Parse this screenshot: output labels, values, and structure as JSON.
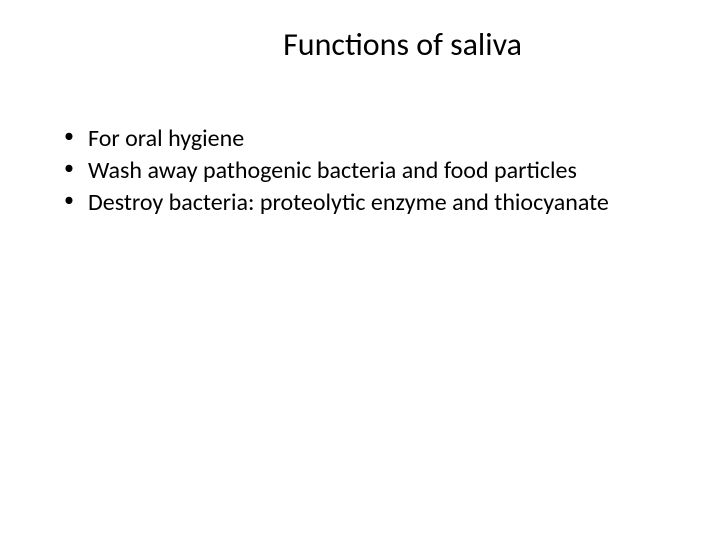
{
  "slide": {
    "title": "Functions of saliva",
    "bullets": [
      "For oral hygiene",
      "Wash away pathogenic bacteria and food particles",
      "Destroy bacteria: proteolytic enzyme and thiocyanate"
    ],
    "style": {
      "background_color": "#ffffff",
      "text_color": "#000000",
      "title_fontsize": 32,
      "body_fontsize": 24,
      "font_family": "Calibri"
    }
  }
}
